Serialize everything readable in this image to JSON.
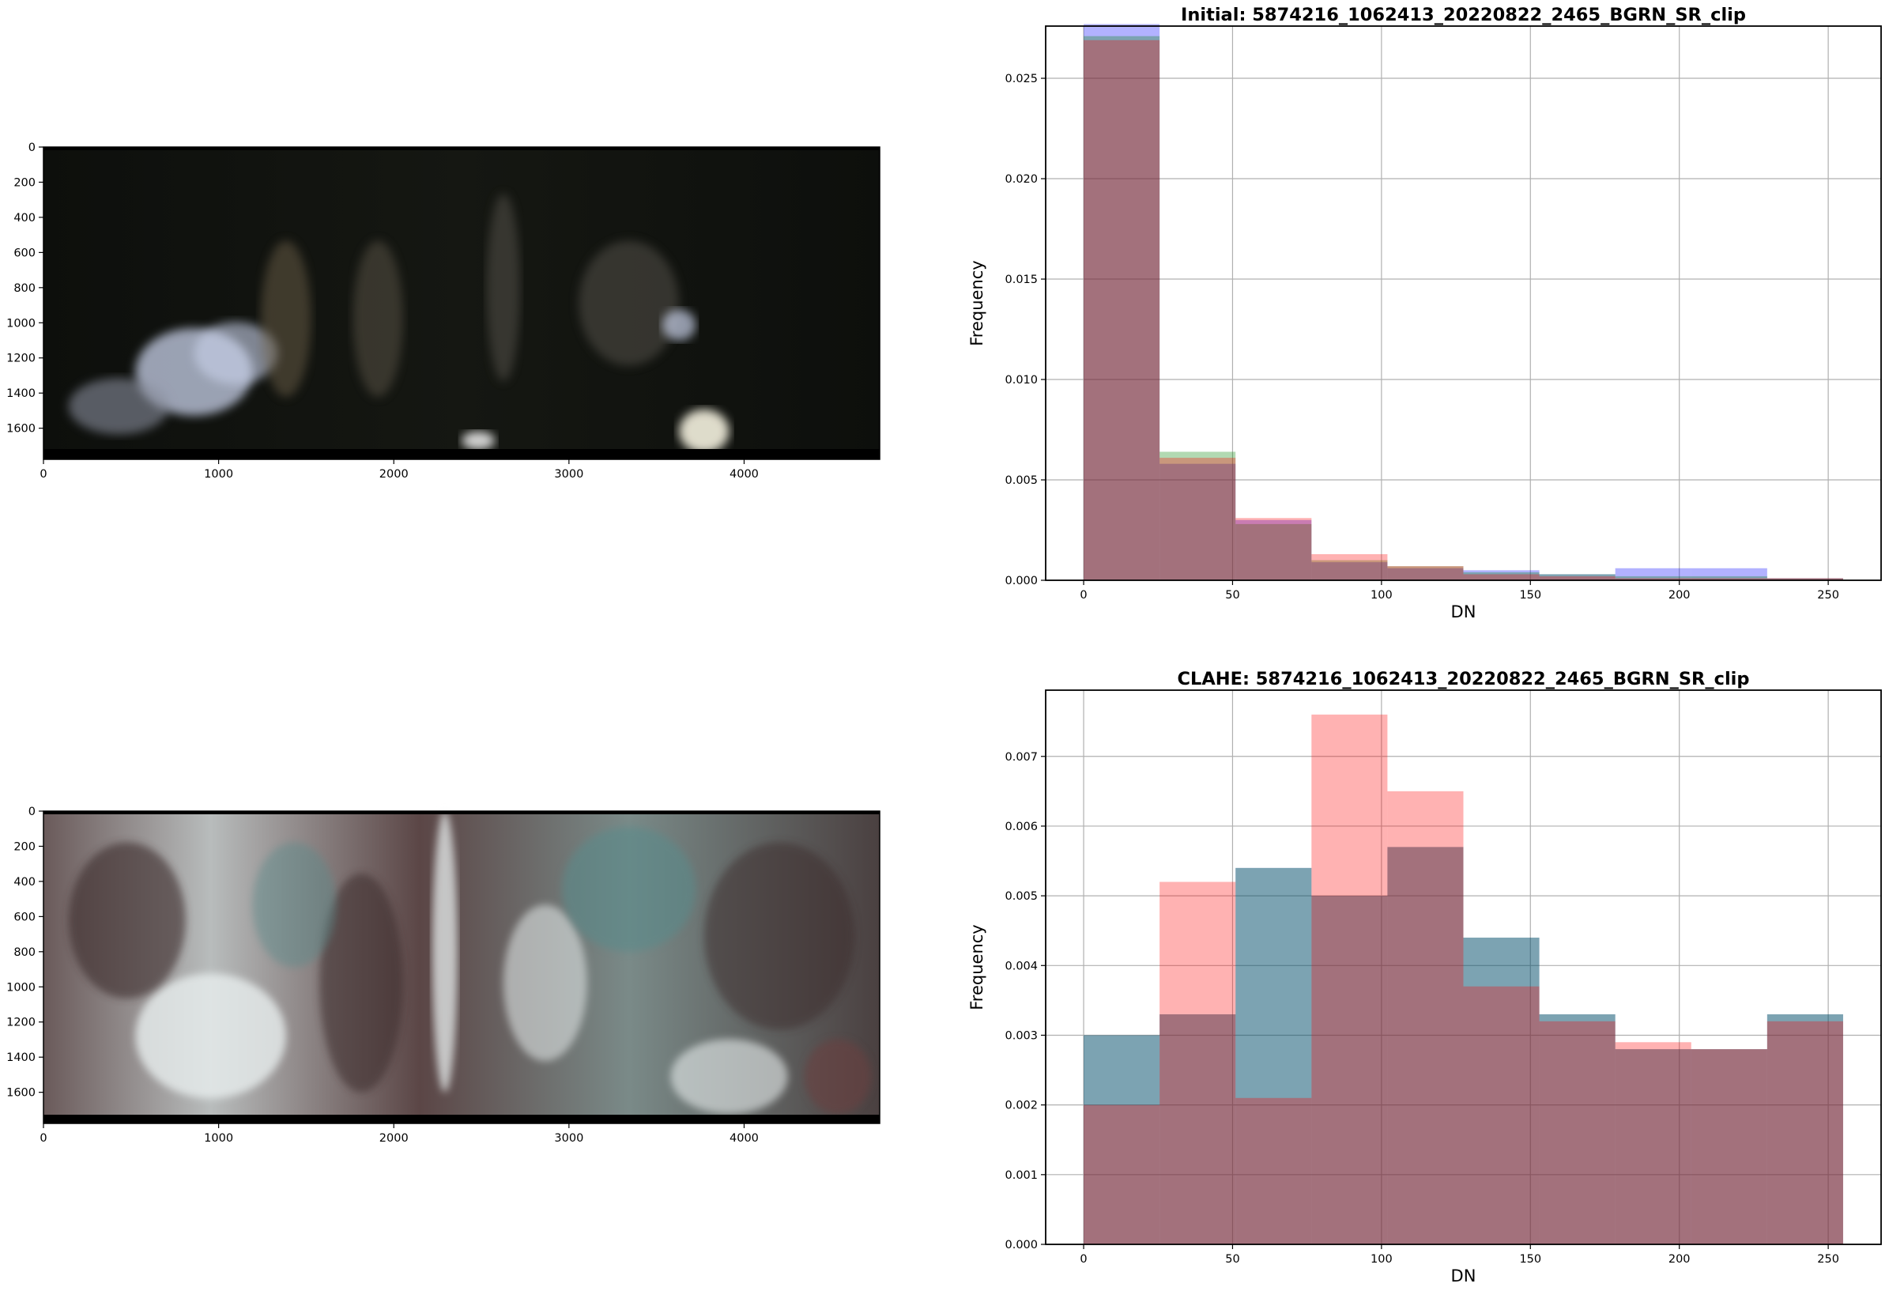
{
  "chart_data": [
    {
      "type": "image",
      "xlim": [
        0,
        4774
      ],
      "ylim": [
        1777,
        0
      ],
      "xticks": [
        0,
        1000,
        2000,
        3000,
        4000
      ],
      "yticks": [
        0,
        200,
        400,
        600,
        800,
        1000,
        1200,
        1400,
        1600
      ],
      "colors": {
        "sky": "#0d0f0c",
        "rock": "#5a5650",
        "snow": "#c9d2ea",
        "band": "#000000"
      }
    },
    {
      "type": "bar",
      "title": "Initial: 5874216_1062413_20220822_2465_BGRN_SR_clip",
      "xlabel": "DN",
      "ylabel": "Frequency",
      "bin_edges": [
        0,
        25.5,
        51,
        76.5,
        102,
        127.5,
        153,
        178.5,
        204,
        229.5,
        255
      ],
      "xlim": [
        -12.75,
        267.75
      ],
      "ylim": [
        0,
        0.0276
      ],
      "xticks": [
        0,
        50,
        100,
        150,
        200,
        250
      ],
      "yticks": [
        0.0,
        0.005,
        0.01,
        0.015,
        0.02,
        0.025
      ],
      "ytick_labels": [
        "0.000",
        "0.005",
        "0.010",
        "0.015",
        "0.020",
        "0.025"
      ],
      "grid": true,
      "series": [
        {
          "color": "#0000ff",
          "values": [
            0.0277,
            0.0058,
            0.003,
            0.0009,
            0.0006,
            0.0005,
            0.0003,
            0.0006,
            0.0006,
            0.0001
          ]
        },
        {
          "color": "#008000",
          "values": [
            0.0271,
            0.0064,
            0.0028,
            0.001,
            0.0007,
            0.0004,
            0.0003,
            0.0002,
            0.0002,
            0.0001
          ]
        },
        {
          "color": "#ff0000",
          "values": [
            0.0269,
            0.0061,
            0.0031,
            0.0013,
            0.0007,
            0.0003,
            0.0002,
            0.0001,
            0.0001,
            0.0001
          ]
        }
      ]
    },
    {
      "type": "image",
      "xlim": [
        0,
        4774
      ],
      "ylim": [
        1777,
        0
      ],
      "xticks": [
        0,
        1000,
        2000,
        3000,
        4000
      ],
      "yticks": [
        0,
        200,
        400,
        600,
        800,
        1000,
        1200,
        1400,
        1600
      ],
      "colors": {
        "dark": "#3a2a2a",
        "teal": "#5a8a8a",
        "snow": "#e8eeee",
        "band": "#000000"
      }
    },
    {
      "type": "bar",
      "title": "CLAHE: 5874216_1062413_20220822_2465_BGRN_SR_clip",
      "xlabel": "DN",
      "ylabel": "Frequency",
      "bin_edges": [
        0,
        25.5,
        51,
        76.5,
        102,
        127.5,
        153,
        178.5,
        204,
        229.5,
        255
      ],
      "xlim": [
        -12.75,
        267.75
      ],
      "ylim": [
        0,
        0.00795
      ],
      "xticks": [
        0,
        50,
        100,
        150,
        200,
        250
      ],
      "yticks": [
        0.0,
        0.001,
        0.002,
        0.003,
        0.004,
        0.005,
        0.006,
        0.007
      ],
      "ytick_labels": [
        "0.000",
        "0.001",
        "0.002",
        "0.003",
        "0.004",
        "0.005",
        "0.006",
        "0.007"
      ],
      "grid": true,
      "series": [
        {
          "color": "#0000ff",
          "values": [
            0.003,
            0.0033,
            0.0054,
            0.005,
            0.0057,
            0.0044,
            0.0033,
            0.0028,
            0.0028,
            0.0033
          ]
        },
        {
          "color": "#008000",
          "values": [
            0.003,
            0.0033,
            0.0054,
            0.005,
            0.0057,
            0.0044,
            0.0033,
            0.0028,
            0.0028,
            0.0033
          ]
        },
        {
          "color": "#ff0000",
          "values": [
            0.002,
            0.0052,
            0.0021,
            0.0076,
            0.0065,
            0.0037,
            0.0032,
            0.0029,
            0.0028,
            0.0032
          ]
        }
      ]
    }
  ]
}
